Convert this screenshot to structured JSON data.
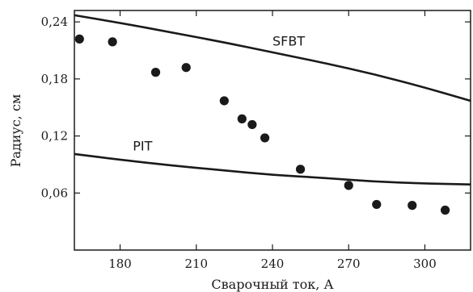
{
  "chart_data": {
    "type": "scatter",
    "xlabel": "Сварочный ток, А",
    "ylabel": "Радиус, см",
    "xlim": [
      162,
      318
    ],
    "ylim": [
      0,
      0.252
    ],
    "grid": false,
    "legend": "none",
    "x_ticks": [
      180,
      210,
      240,
      270,
      300
    ],
    "x_tick_labels": [
      "180",
      "210",
      "240",
      "270",
      "300"
    ],
    "y_ticks": [
      0.06,
      0.12,
      0.18,
      0.24
    ],
    "y_tick_labels": [
      "0,06",
      "0,12",
      "0,18",
      "0,24"
    ],
    "series": [
      {
        "kind": "points",
        "x": [
          164,
          177,
          194,
          206,
          221,
          228,
          232,
          237,
          251,
          270,
          281,
          295,
          308
        ],
        "y": [
          0.222,
          0.219,
          0.187,
          0.192,
          0.157,
          0.138,
          0.132,
          0.118,
          0.085,
          0.068,
          0.048,
          0.047,
          0.042
        ]
      },
      {
        "kind": "curve",
        "label": "SFBT",
        "x": [
          162,
          180,
          200,
          220,
          240,
          260,
          280,
          300,
          318
        ],
        "y": [
          0.247,
          0.239,
          0.229,
          0.219,
          0.208,
          0.197,
          0.185,
          0.171,
          0.157
        ]
      },
      {
        "kind": "curve",
        "label": "PIT",
        "x": [
          162,
          180,
          200,
          220,
          240,
          260,
          280,
          300,
          318
        ],
        "y": [
          0.101,
          0.095,
          0.089,
          0.084,
          0.079,
          0.076,
          0.072,
          0.07,
          0.069
        ]
      }
    ],
    "curve_label_positions": [
      {
        "label": "SFBT",
        "x": 240,
        "y": 0.215
      },
      {
        "label": "PIT",
        "x": 185,
        "y": 0.105
      }
    ]
  },
  "colors": {
    "ink": "#1a1a1a"
  }
}
